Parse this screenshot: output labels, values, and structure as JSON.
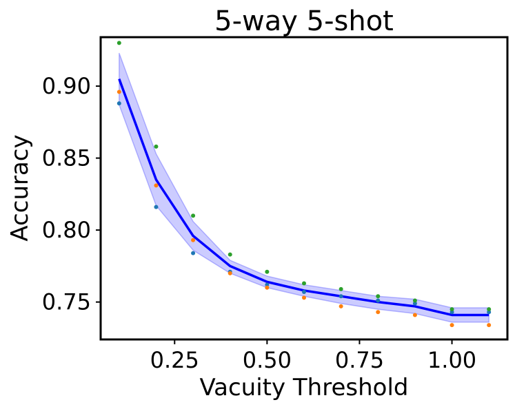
{
  "chart_data": {
    "type": "line",
    "title": "5-way 5-shot",
    "xlabel": "Vacuity Threshold",
    "ylabel": "Accuracy",
    "xlim": [
      0.05,
      1.15
    ],
    "ylim": [
      0.724,
      0.934
    ],
    "xticks": [
      0.25,
      0.5,
      0.75,
      1.0
    ],
    "xtick_labels": [
      "0.25",
      "0.50",
      "0.75",
      "1.00"
    ],
    "yticks": [
      0.75,
      0.8,
      0.85,
      0.9
    ],
    "ytick_labels": [
      "0.75",
      "0.80",
      "0.85",
      "0.90"
    ],
    "grid": false,
    "x": [
      0.1,
      0.2,
      0.3,
      0.4,
      0.5,
      0.6,
      0.7,
      0.8,
      0.9,
      1.0,
      1.1
    ],
    "mean_line": {
      "color": "#0000ff",
      "values": [
        0.905,
        0.835,
        0.796,
        0.775,
        0.764,
        0.758,
        0.754,
        0.75,
        0.747,
        0.741,
        0.741
      ]
    },
    "band": {
      "color": "#0000ff",
      "lower": [
        0.887,
        0.817,
        0.786,
        0.77,
        0.76,
        0.754,
        0.749,
        0.745,
        0.742,
        0.736,
        0.736
      ],
      "upper": [
        0.923,
        0.853,
        0.806,
        0.779,
        0.768,
        0.762,
        0.758,
        0.754,
        0.752,
        0.746,
        0.746
      ]
    },
    "series": [
      {
        "color": "#1f77b4",
        "values": [
          0.888,
          0.816,
          0.784,
          0.771,
          0.762,
          0.757,
          0.754,
          0.751,
          0.749,
          0.743,
          0.743
        ]
      },
      {
        "color": "#ff7f0e",
        "values": [
          0.896,
          0.831,
          0.793,
          0.77,
          0.76,
          0.753,
          0.747,
          0.743,
          0.741,
          0.734,
          0.734
        ]
      },
      {
        "color": "#2ca02c",
        "values": [
          0.93,
          0.858,
          0.81,
          0.783,
          0.771,
          0.763,
          0.759,
          0.754,
          0.751,
          0.745,
          0.745
        ]
      }
    ]
  }
}
